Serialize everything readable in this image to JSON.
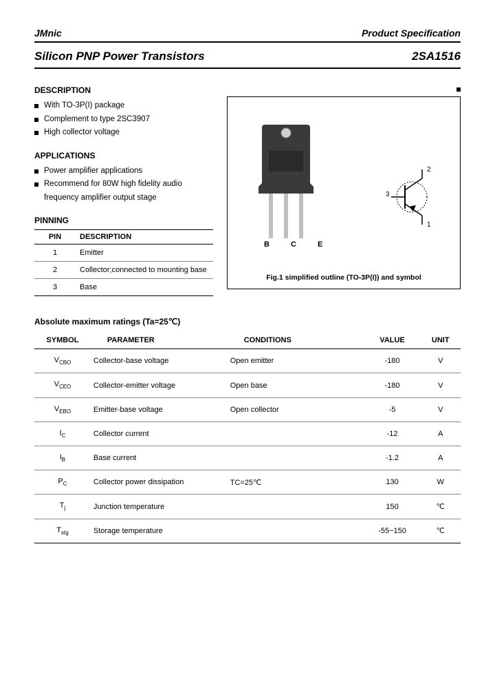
{
  "header": {
    "company": "JMnic",
    "doc_type": "Product Specification"
  },
  "title": {
    "product_family": "Silicon PNP Power Transistors",
    "part_number": "2SA1516"
  },
  "description": {
    "heading": "DESCRIPTION",
    "items": [
      "With TO-3P(I) package",
      "Complement to type 2SC3907",
      "High collector voltage"
    ]
  },
  "applications": {
    "heading": "APPLICATIONS",
    "items": [
      "Power amplifier applications",
      "Recommend for 80W high fidelity audio frequency amplifier output stage"
    ]
  },
  "pinning": {
    "heading": "PINNING",
    "columns": [
      "PIN",
      "DESCRIPTION"
    ],
    "rows": [
      {
        "pin": "1",
        "desc": "Emitter"
      },
      {
        "pin": "2",
        "desc": "Collector;connected to mounting base"
      },
      {
        "pin": "3",
        "desc": "Base"
      }
    ]
  },
  "figure": {
    "caption": "Fig.1 simplified outline (TO-3P(I)) and symbol",
    "pin_labels": "B  C  E",
    "symbol_labels": {
      "base": "3",
      "collector": "2",
      "emitter": "1"
    },
    "package_color": "#3a3a3a",
    "lead_color": "#bfbfbf"
  },
  "ratings": {
    "heading": "Absolute maximum ratings (Ta=25℃)",
    "columns": [
      "SYMBOL",
      "PARAMETER",
      "CONDITIONS",
      "VALUE",
      "UNIT"
    ],
    "rows": [
      {
        "symbol": "V",
        "sub": "CBO",
        "parameter": "Collector-base voltage",
        "conditions": "Open emitter",
        "value": "-180",
        "unit": "V"
      },
      {
        "symbol": "V",
        "sub": "CEO",
        "parameter": "Collector-emitter voltage",
        "conditions": "Open base",
        "value": "-180",
        "unit": "V"
      },
      {
        "symbol": "V",
        "sub": "EBO",
        "parameter": "Emitter-base voltage",
        "conditions": "Open collector",
        "value": "-5",
        "unit": "V"
      },
      {
        "symbol": "I",
        "sub": "C",
        "parameter": "Collector current",
        "conditions": "",
        "value": "-12",
        "unit": "A"
      },
      {
        "symbol": "I",
        "sub": "B",
        "parameter": "Base current",
        "conditions": "",
        "value": "-1.2",
        "unit": "A"
      },
      {
        "symbol": "P",
        "sub": "C",
        "parameter": "Collector power dissipation",
        "conditions": "TC=25℃",
        "value": "130",
        "unit": "W"
      },
      {
        "symbol": "T",
        "sub": "j",
        "parameter": "Junction temperature",
        "conditions": "",
        "value": "150",
        "unit": "℃"
      },
      {
        "symbol": "T",
        "sub": "stg",
        "parameter": "Storage temperature",
        "conditions": "",
        "value": "-55~150",
        "unit": "℃"
      }
    ]
  }
}
